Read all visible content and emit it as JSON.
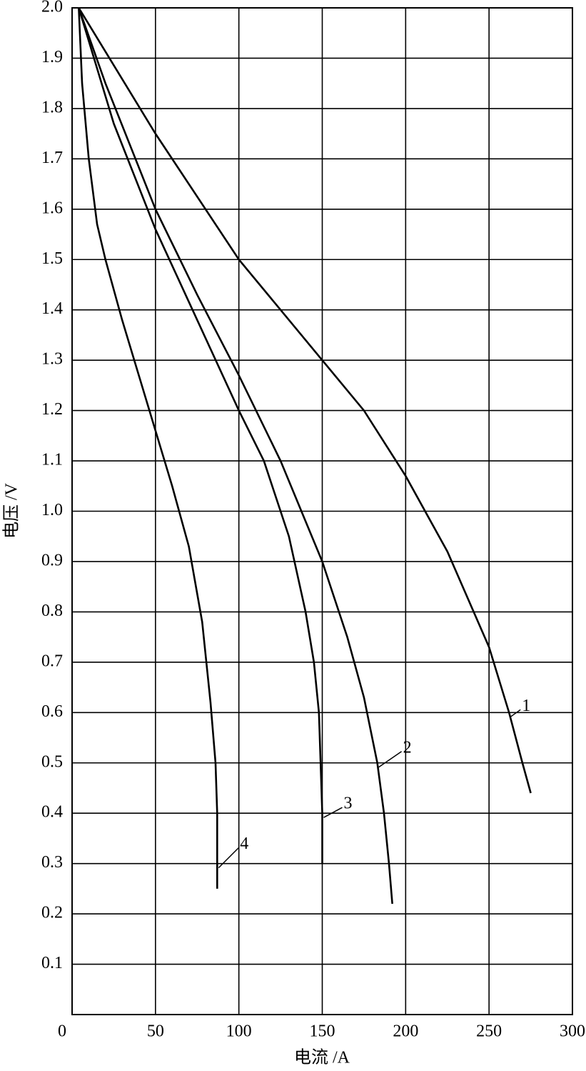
{
  "chart_data": {
    "type": "line",
    "xlabel": "电流 /A",
    "ylabel": "电压 /V",
    "xlim": [
      0,
      300
    ],
    "ylim": [
      0,
      2.0
    ],
    "xticks": [
      0,
      50,
      100,
      150,
      200,
      250,
      300
    ],
    "yticks": [
      0.1,
      0.2,
      0.3,
      0.4,
      0.5,
      0.6,
      0.7,
      0.8,
      0.9,
      {
        "value": 1.0,
        "label": "1.0"
      },
      1.1,
      1.2,
      1.3,
      1.4,
      1.5,
      1.6,
      1.7,
      1.8,
      1.9,
      {
        "value": 2.0,
        "label": "2.0"
      }
    ],
    "grid": true,
    "series": [
      {
        "name": "1",
        "color": "#000000",
        "x": [
          4,
          50,
          100,
          150,
          175,
          200,
          225,
          250,
          262,
          270,
          275
        ],
        "values": [
          2.0,
          1.75,
          1.5,
          1.3,
          1.2,
          1.07,
          0.92,
          0.73,
          0.6,
          0.5,
          0.44
        ]
      },
      {
        "name": "2",
        "color": "#000000",
        "x": [
          4,
          20,
          50,
          75,
          100,
          125,
          140,
          150,
          165,
          175,
          183,
          187,
          190,
          192
        ],
        "values": [
          2.0,
          1.85,
          1.6,
          1.43,
          1.27,
          1.1,
          0.98,
          0.9,
          0.75,
          0.63,
          0.5,
          0.4,
          0.3,
          0.22
        ]
      },
      {
        "name": "3",
        "color": "#000000",
        "x": [
          4,
          25,
          50,
          75,
          100,
          115,
          130,
          140,
          145,
          148,
          149,
          150,
          150
        ],
        "values": [
          2.0,
          1.77,
          1.56,
          1.38,
          1.2,
          1.1,
          0.95,
          0.8,
          0.7,
          0.6,
          0.5,
          0.4,
          0.3
        ]
      },
      {
        "name": "4",
        "color": "#000000",
        "x": [
          4,
          6,
          10,
          15,
          20,
          30,
          40,
          50,
          60,
          70,
          78,
          83,
          86,
          87,
          87,
          87
        ],
        "values": [
          2.0,
          1.85,
          1.7,
          1.57,
          1.5,
          1.38,
          1.27,
          1.16,
          1.05,
          0.93,
          0.78,
          0.62,
          0.5,
          0.4,
          0.3,
          0.25
        ]
      }
    ]
  }
}
